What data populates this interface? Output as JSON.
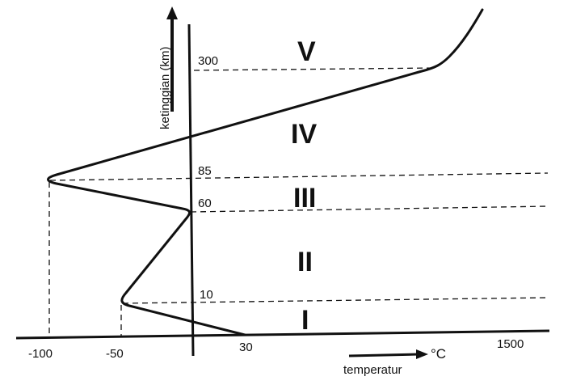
{
  "axes": {
    "y_label": "ketinggian (km)",
    "x_label": "temperatur",
    "x_unit": "°C"
  },
  "altitude_ticks": [
    "300",
    "85",
    "60",
    "10"
  ],
  "temperature_ticks": [
    "-100",
    "-50",
    "30",
    "1500"
  ],
  "layers": [
    "V",
    "IV",
    "III",
    "II",
    "I"
  ],
  "colors": {
    "ink": "#111111",
    "background": "#ffffff"
  },
  "chart_data": {
    "type": "line",
    "xlabel": "temperatur",
    "ylabel": "ketinggian (km)",
    "x_unit": "°C",
    "y_unit": "km",
    "altitude_levels_km": [
      10,
      60,
      85,
      300
    ],
    "temperature_marks_c": [
      -100,
      -50,
      30,
      1500
    ],
    "profile_points": [
      {
        "temperature_c": 30,
        "altitude_km": 0
      },
      {
        "temperature_c": -50,
        "altitude_km": 10
      },
      {
        "temperature_c": 0,
        "altitude_km": 60
      },
      {
        "temperature_c": -100,
        "altitude_km": 85
      },
      {
        "temperature_c": 1200,
        "altitude_km": 300
      }
    ],
    "regions": [
      "I",
      "II",
      "III",
      "IV",
      "V"
    ],
    "grid": false
  }
}
